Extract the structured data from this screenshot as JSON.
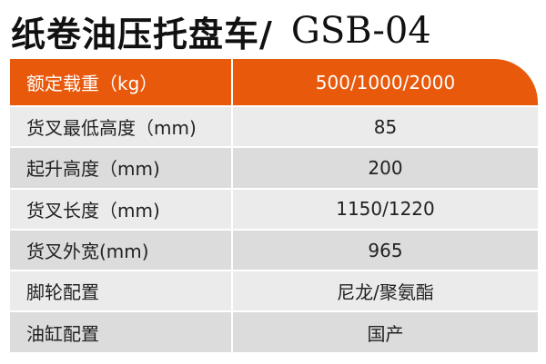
{
  "title": {
    "name": "纸卷油压托盘车/",
    "model": "GSB-04"
  },
  "colors": {
    "header": "#e8590c",
    "row_light": "#ebebeb",
    "row_dark": "#dcdcdc"
  },
  "header": {
    "label": "额定载重（kg）",
    "value": "500/1000/2000"
  },
  "rows": [
    {
      "label": "货叉最低高度（mm)",
      "value": "85"
    },
    {
      "label": "起升高度（mm)",
      "value": "200"
    },
    {
      "label": "货叉长度（mm)",
      "value": "1150/1220"
    },
    {
      "label": "货叉外宽(mm)",
      "value": "965"
    },
    {
      "label": "脚轮配置",
      "value": "尼龙/聚氨酯"
    },
    {
      "label": "油缸配置",
      "value": "国产"
    }
  ]
}
